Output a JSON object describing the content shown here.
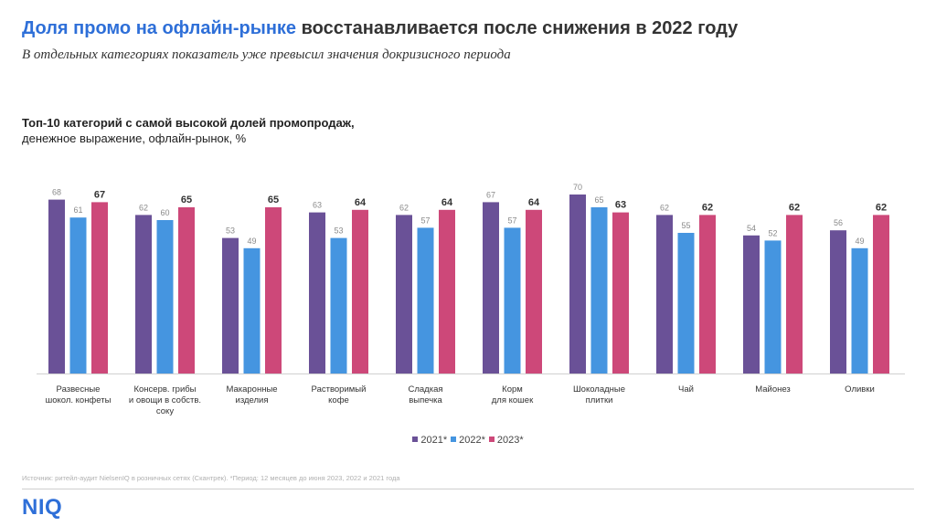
{
  "header": {
    "title_accent": "Доля промо на офлайн-рынке",
    "title_rest": " восстанавливается после снижения в 2022 году",
    "subtitle": "В отдельных категориях показатель уже превысил значения докризисного периода"
  },
  "chart_heading": {
    "line1": "Топ-10 категорий с самой высокой долей промопродаж,",
    "line2": "денежное выражение, офлайн-рынок, %"
  },
  "chart_data": {
    "type": "bar",
    "categories": [
      [
        "Развесные",
        "шокол. конфеты"
      ],
      [
        "Консерв. грибы",
        "и овощи в собств.",
        "соку"
      ],
      [
        "Макаронные",
        "изделия"
      ],
      [
        "Растворимый",
        "кофе"
      ],
      [
        "Сладкая",
        "выпечка"
      ],
      [
        "Корм",
        "для кошек"
      ],
      [
        "Шоколадные",
        "плитки"
      ],
      [
        "Чай"
      ],
      [
        "Майонез"
      ],
      [
        "Оливки"
      ]
    ],
    "series": [
      {
        "name": "2021*",
        "color": "#6a5197",
        "values": [
          68,
          62,
          53,
          63,
          62,
          67,
          70,
          62,
          54,
          56
        ]
      },
      {
        "name": "2022*",
        "color": "#4595e0",
        "values": [
          61,
          60,
          49,
          53,
          57,
          57,
          65,
          55,
          52,
          49
        ]
      },
      {
        "name": "2023*",
        "color": "#cd4879",
        "values": [
          67,
          65,
          65,
          64,
          64,
          64,
          63,
          62,
          62,
          62
        ]
      }
    ],
    "ylim": [
      0,
      70
    ],
    "grid": false,
    "legend_position": "bottom-center"
  },
  "footer": {
    "source": "Источник: ритейл-аудит NielsenIQ в розничных сетях (Скантрек). *Период: 12 месяцев до июня 2023, 2022 и 2021 года",
    "logo": "NIQ"
  }
}
